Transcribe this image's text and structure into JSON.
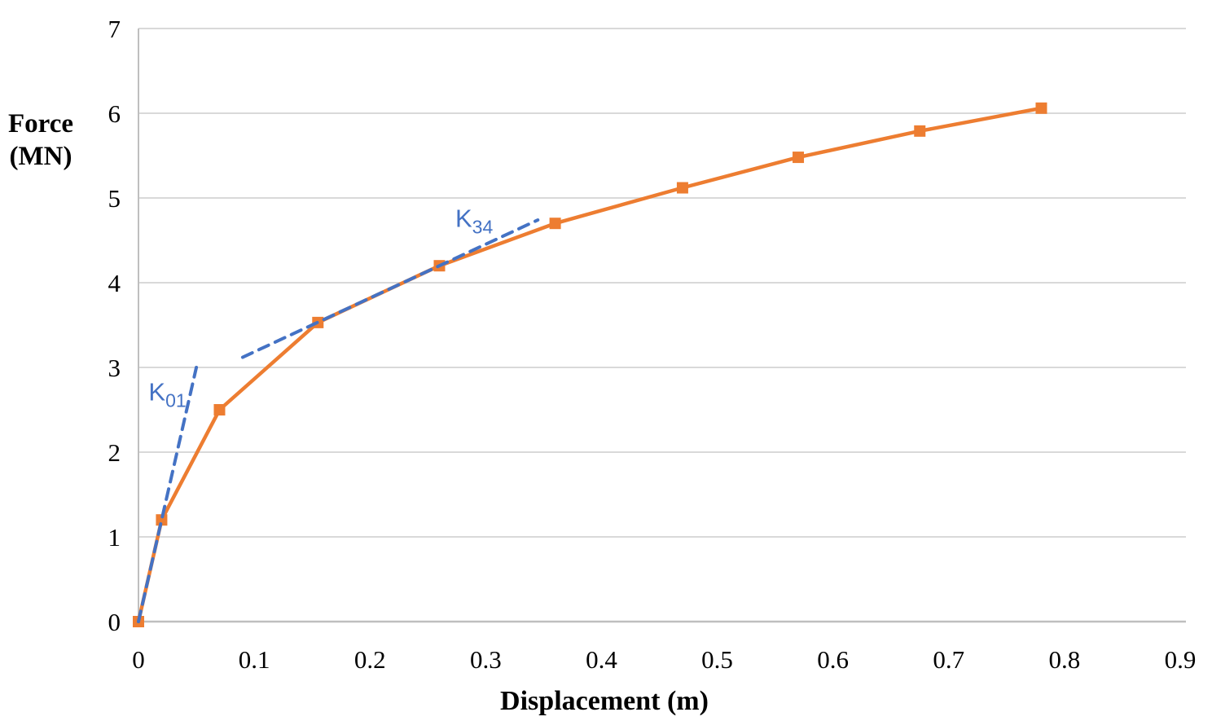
{
  "chart_data": {
    "type": "line",
    "title": "",
    "xlabel": "Displacement (m)",
    "ylabel": "Force (MN)",
    "ylabel_lines": [
      "Force",
      "(MN)"
    ],
    "xlim": [
      0,
      0.9
    ],
    "ylim": [
      0,
      7
    ],
    "x_ticks": [
      0,
      0.1,
      0.2,
      0.3,
      0.4,
      0.5,
      0.6,
      0.7,
      0.8,
      0.9
    ],
    "x_tick_labels": [
      "0",
      "0.1",
      "0.2",
      "0.3",
      "0.4",
      "0.5",
      "0.6",
      "0.7",
      "0.8",
      "0.9"
    ],
    "y_ticks": [
      0,
      1,
      2,
      3,
      4,
      5,
      6,
      7
    ],
    "y_tick_labels": [
      "0",
      "1",
      "2",
      "3",
      "4",
      "5",
      "6",
      "7"
    ],
    "grid": "horizontal",
    "legend": "none",
    "series": [
      {
        "name": "force-displacement-curve",
        "color": "#ED7D31",
        "marker": "square",
        "line_style": "solid",
        "points": [
          [
            0,
            0
          ],
          [
            0.02,
            1.2
          ],
          [
            0.07,
            2.5
          ],
          [
            0.155,
            3.53
          ],
          [
            0.26,
            4.2
          ],
          [
            0.36,
            4.7
          ],
          [
            0.47,
            5.12
          ],
          [
            0.57,
            5.48
          ],
          [
            0.675,
            5.79
          ],
          [
            0.78,
            6.06
          ]
        ]
      }
    ],
    "annotations": [
      {
        "name": "k01",
        "label_main": "K",
        "label_sub": "01",
        "color": "#4472C4",
        "line_style": "dashed",
        "line": [
          [
            0,
            0
          ],
          [
            0.05,
            3.0
          ]
        ],
        "label_pos": [
          0.025,
          2.61
        ]
      },
      {
        "name": "k34",
        "label_main": "K",
        "label_sub": "34",
        "color": "#4472C4",
        "line_style": "dashed",
        "line": [
          [
            0.09,
            3.12
          ],
          [
            0.345,
            4.74
          ]
        ],
        "label_pos": [
          0.29,
          4.66
        ]
      }
    ],
    "colors": {
      "series": "#ED7D31",
      "tangent": "#4472C4",
      "gridline": "#D9D9D9",
      "axis": "#BFBFBF",
      "text": "#000000"
    }
  }
}
